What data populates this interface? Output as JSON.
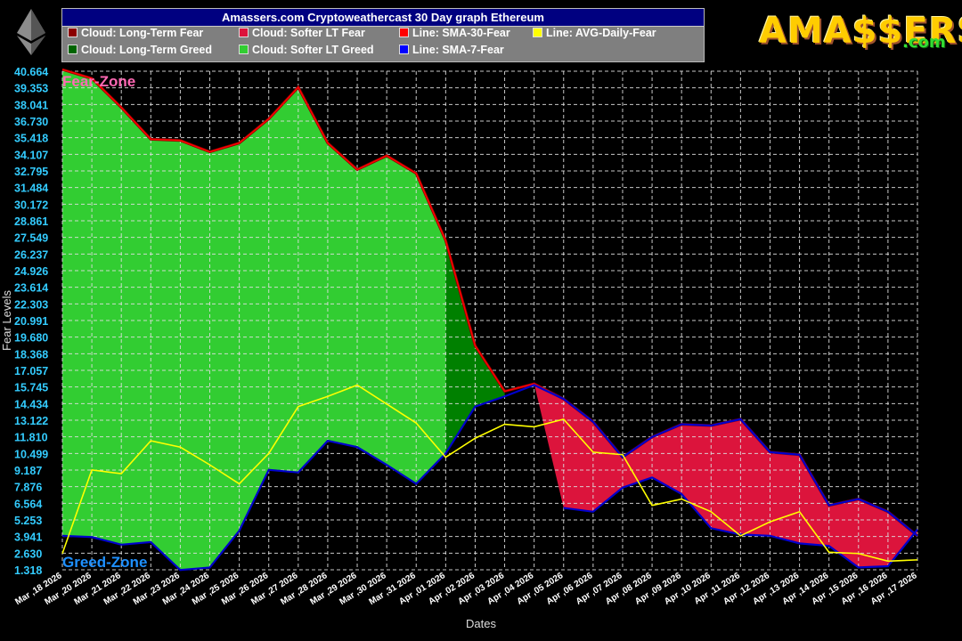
{
  "header": {
    "title": "Amassers.com Cryptoweathercast 30 Day graph Ethereum",
    "logo_text": "AMA$$ERS",
    "logo_suffix": ".com"
  },
  "legend": [
    {
      "label": "Cloud: Long-Term Fear",
      "color": "#8b0000"
    },
    {
      "label": "Cloud: Softer LT Fear",
      "color": "#dc143c"
    },
    {
      "label": "Line: SMA-30-Fear",
      "color": "#ff0000"
    },
    {
      "label": "Line: AVG-Daily-Fear",
      "color": "#ffff00"
    },
    {
      "label": "Cloud: Long-Term Greed",
      "color": "#006400"
    },
    {
      "label": "Cloud: Softer LT Greed",
      "color": "#32cd32"
    },
    {
      "label": "Line: SMA-7-Fear",
      "color": "#0000ff"
    }
  ],
  "chart_data": {
    "type": "area",
    "xlabel": "Dates",
    "ylabel": "Fear Levels",
    "ylim": [
      1.318,
      40.664
    ],
    "grid": true,
    "zone_labels": {
      "top": "Fear-Zone",
      "bottom": "Greed-Zone"
    },
    "yticks": [
      "40.664",
      "39.353",
      "38.041",
      "36.730",
      "35.418",
      "34.107",
      "32.795",
      "31.484",
      "30.172",
      "28.861",
      "27.549",
      "26.237",
      "24.926",
      "23.614",
      "22.303",
      "20.991",
      "19.680",
      "18.368",
      "17.057",
      "15.745",
      "14.434",
      "13.122",
      "11.810",
      "10.499",
      "9.187",
      "7.876",
      "6.564",
      "5.253",
      "3.941",
      "2.630",
      "1.318"
    ],
    "categories": [
      "Mar ,18 2026",
      "Mar ,20 2026",
      "Mar ,21 2026",
      "Mar ,22 2026",
      "Mar ,23 2026",
      "Mar ,24 2026",
      "Mar ,25 2026",
      "Mar ,26 2026",
      "Mar ,27 2026",
      "Mar ,28 2026",
      "Mar ,29 2026",
      "Mar ,30 2026",
      "Mar ,31 2026",
      "Apr ,01 2026",
      "Apr ,02 2026",
      "Apr ,03 2026",
      "Apr ,04 2026",
      "Apr ,05 2026",
      "Apr ,06 2026",
      "Apr ,07 2026",
      "Apr ,08 2026",
      "Apr ,09 2026",
      "Apr ,10 2026",
      "Apr ,11 2026",
      "Apr ,12 2026",
      "Apr ,13 2026",
      "Apr ,14 2026",
      "Apr ,15 2026",
      "Apr ,16 2026",
      "Apr ,17 2026"
    ],
    "series": [
      {
        "name": "Line: SMA-30-Fear",
        "color": "#ff0000",
        "values": [
          40.8,
          40.1,
          37.8,
          35.3,
          35.2,
          34.3,
          35.0,
          36.9,
          39.4,
          35.0,
          32.9,
          34.0,
          32.6,
          27.3,
          19.0,
          15.4,
          16.0,
          14.8,
          13.0,
          10.2,
          11.8,
          12.8,
          12.7,
          13.2,
          10.6,
          10.4,
          6.4,
          6.9,
          5.9,
          4.0
        ]
      },
      {
        "name": "Line: SMA-7-Fear",
        "color": "#0000ff",
        "values": [
          4.0,
          3.9,
          3.3,
          3.5,
          1.3,
          1.5,
          4.4,
          9.2,
          9.0,
          11.5,
          11.0,
          9.6,
          8.1,
          10.5,
          14.2,
          15.0,
          15.9,
          14.8,
          13.0,
          10.2,
          11.8,
          12.8,
          12.7,
          13.2,
          10.6,
          10.4,
          6.4,
          6.9,
          5.9,
          4.0
        ]
      },
      {
        "name": "Line: AVG-Daily-Fear",
        "color": "#ffff00",
        "values": [
          2.6,
          9.2,
          8.9,
          11.5,
          11.0,
          9.6,
          8.1,
          10.5,
          14.2,
          15.0,
          15.9,
          14.4,
          12.9,
          10.2,
          11.7,
          12.8,
          12.6,
          13.2,
          10.6,
          10.4,
          6.4,
          6.9,
          5.9,
          4.0,
          5.1,
          5.9,
          2.7,
          2.6,
          2.0,
          2.1
        ]
      },
      {
        "name": "Line: SMA-30-Fear (lower)",
        "color": "#ff0000",
        "values": [
          null,
          null,
          null,
          null,
          null,
          null,
          null,
          null,
          null,
          null,
          null,
          null,
          null,
          null,
          null,
          null,
          null,
          6.2,
          5.9,
          7.8,
          8.6,
          7.3,
          4.6,
          4.1,
          4.0,
          3.4,
          3.2,
          1.5,
          1.6,
          4.5
        ]
      }
    ]
  }
}
